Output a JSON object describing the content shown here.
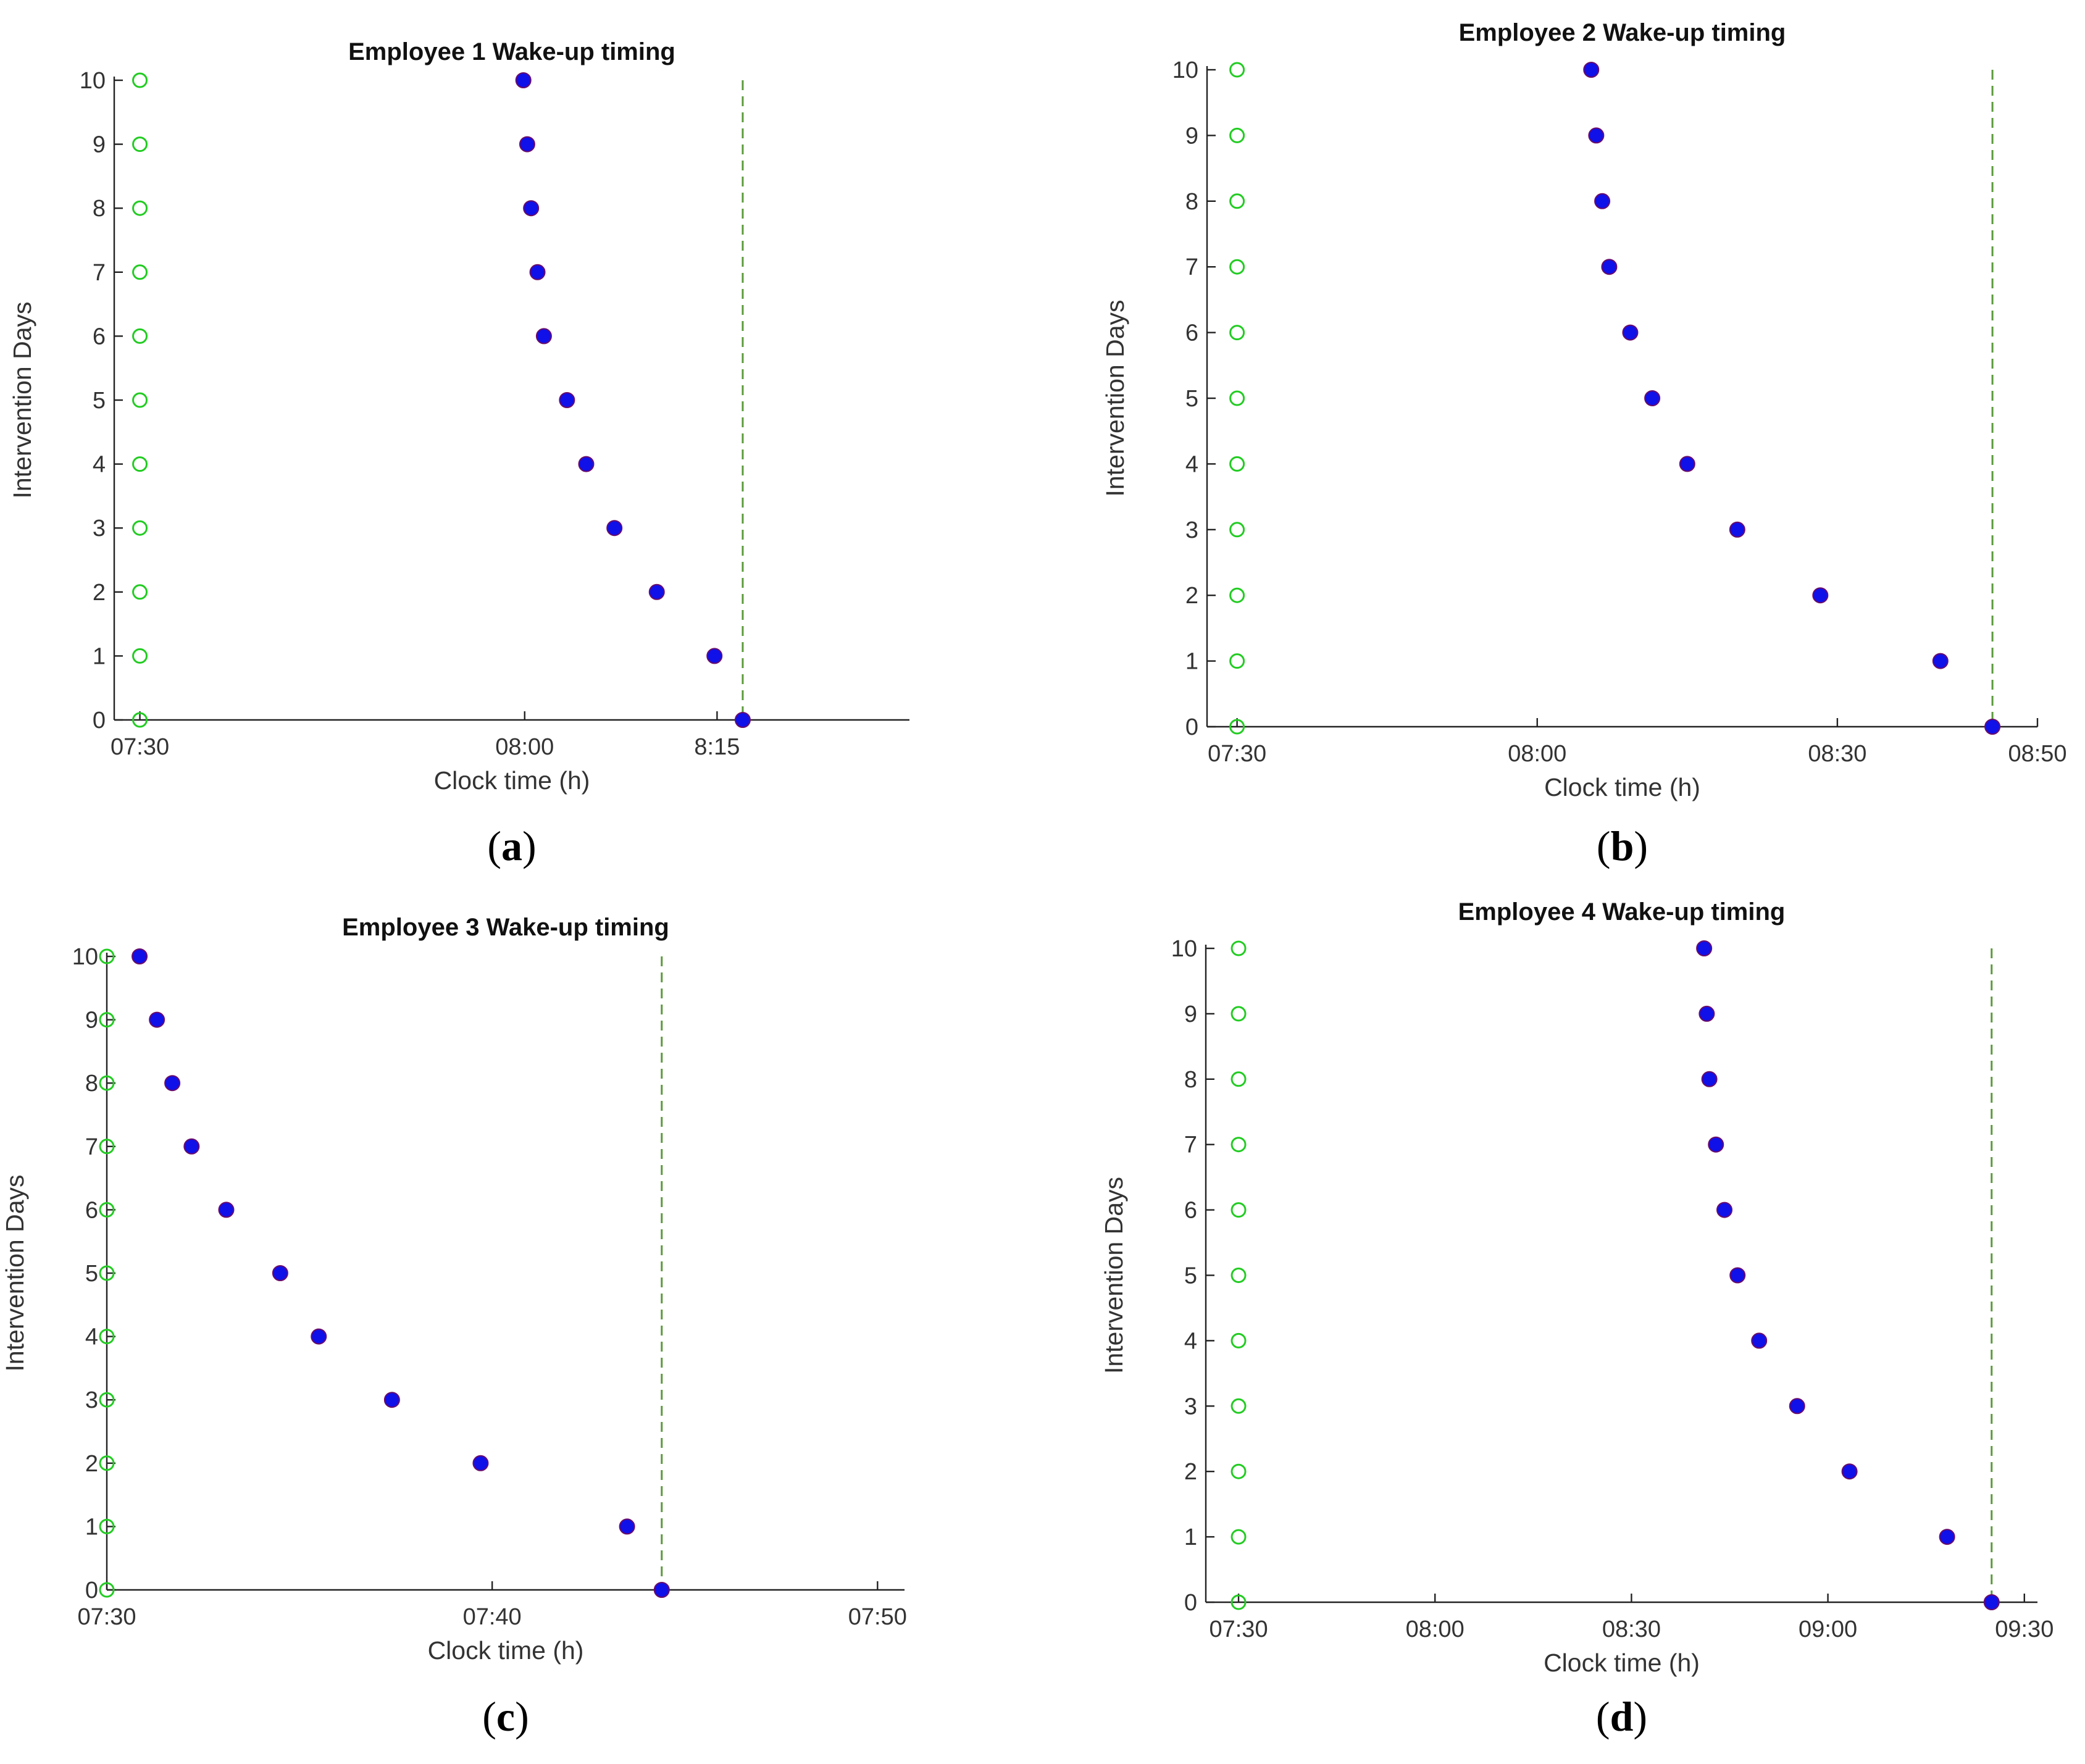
{
  "colors": {
    "baseline_marker": "#22cc22",
    "intervention_fill": "#1010e8",
    "intervention_edge": "#6a0d6a",
    "target_line": "#5b9a3b"
  },
  "chart_data": [
    {
      "panel_label": "a",
      "type": "scatter",
      "title": "Employee 1 Wake-up timing",
      "xlabel": "Clock time (h)",
      "ylabel": "Intervention Days",
      "x_unit": "minutes after 07:30",
      "xlim": [
        -2,
        60
      ],
      "ylim": [
        0,
        10
      ],
      "x_ticks": [
        0,
        30,
        45
      ],
      "x_tick_labels": [
        "07:30",
        "08:00",
        "8:15"
      ],
      "y_ticks": [
        0,
        1,
        2,
        3,
        4,
        5,
        6,
        7,
        8,
        9,
        10
      ],
      "baseline": {
        "x": [
          0,
          0,
          0,
          0,
          0,
          0,
          0,
          0,
          0,
          0,
          0
        ],
        "y": [
          0,
          1,
          2,
          3,
          4,
          5,
          6,
          7,
          8,
          9,
          10
        ]
      },
      "intervention": {
        "x": [
          47,
          44.8,
          40.3,
          37,
          34.8,
          33.3,
          31.5,
          31,
          30.5,
          30.2,
          29.9
        ],
        "y": [
          0,
          1,
          2,
          3,
          4,
          5,
          6,
          7,
          8,
          9,
          10
        ]
      },
      "target_x": 47
    },
    {
      "panel_label": "b",
      "type": "scatter",
      "title": "Employee 2 Wake-up timing",
      "xlabel": "Clock time (h)",
      "ylabel": "Intervention Days",
      "x_unit": "minutes after 07:30",
      "xlim": [
        -3,
        80
      ],
      "ylim": [
        0,
        10
      ],
      "x_ticks": [
        0,
        30,
        60,
        80
      ],
      "x_tick_labels": [
        "07:30",
        "08:00",
        "08:30",
        "08:50"
      ],
      "y_ticks": [
        0,
        1,
        2,
        3,
        4,
        5,
        6,
        7,
        8,
        9,
        10
      ],
      "baseline": {
        "x": [
          0,
          0,
          0,
          0,
          0,
          0,
          0,
          0,
          0,
          0,
          0
        ],
        "y": [
          0,
          1,
          2,
          3,
          4,
          5,
          6,
          7,
          8,
          9,
          10
        ]
      },
      "intervention": {
        "x": [
          75.5,
          70.3,
          58.3,
          50,
          45,
          41.5,
          39.3,
          37.2,
          36.5,
          35.9,
          35.4
        ],
        "y": [
          0,
          1,
          2,
          3,
          4,
          5,
          6,
          7,
          8,
          9,
          10
        ]
      },
      "target_x": 75.5
    },
    {
      "panel_label": "c",
      "type": "scatter",
      "title": "Employee 3 Wake-up timing",
      "xlabel": "Clock time (h)",
      "ylabel": "Intervention Days",
      "x_unit": "minutes after 07:30",
      "xlim": [
        0,
        20.7
      ],
      "ylim": [
        0,
        10
      ],
      "x_ticks": [
        0,
        10,
        20
      ],
      "x_tick_labels": [
        "07:30",
        "07:40",
        "07:50"
      ],
      "y_ticks": [
        0,
        1,
        2,
        3,
        4,
        5,
        6,
        7,
        8,
        9,
        10
      ],
      "baseline": {
        "x": [
          0,
          0,
          0,
          0,
          0,
          0,
          0,
          0,
          0,
          0,
          0
        ],
        "y": [
          0,
          1,
          2,
          3,
          4,
          5,
          6,
          7,
          8,
          9,
          10
        ]
      },
      "intervention": {
        "x": [
          14.4,
          13.5,
          9.7,
          7.4,
          5.5,
          4.5,
          3.1,
          2.2,
          1.7,
          1.3,
          0.85
        ],
        "y": [
          0,
          1,
          2,
          3,
          4,
          5,
          6,
          7,
          8,
          9,
          10
        ]
      },
      "target_x": 14.4
    },
    {
      "panel_label": "d",
      "type": "scatter",
      "title": "Employee 4 Wake-up timing",
      "xlabel": "Clock time (h)",
      "ylabel": "Intervention Days",
      "x_unit": "minutes after 07:30",
      "xlim": [
        -5,
        122
      ],
      "ylim": [
        0,
        10
      ],
      "x_ticks": [
        0,
        30,
        60,
        90,
        120
      ],
      "x_tick_labels": [
        "07:30",
        "08:00",
        "08:30",
        "09:00",
        "09:30"
      ],
      "y_ticks": [
        0,
        1,
        2,
        3,
        4,
        5,
        6,
        7,
        8,
        9,
        10
      ],
      "baseline": {
        "x": [
          0,
          0,
          0,
          0,
          0,
          0,
          0,
          0,
          0,
          0,
          0
        ],
        "y": [
          0,
          1,
          2,
          3,
          4,
          5,
          6,
          7,
          8,
          9,
          10
        ]
      },
      "intervention": {
        "x": [
          115,
          108.2,
          93.3,
          85.3,
          79.5,
          76.2,
          74.2,
          72.9,
          71.9,
          71.5,
          71.1
        ],
        "y": [
          0,
          1,
          2,
          3,
          4,
          5,
          6,
          7,
          8,
          9,
          10
        ]
      },
      "target_x": 115
    }
  ]
}
